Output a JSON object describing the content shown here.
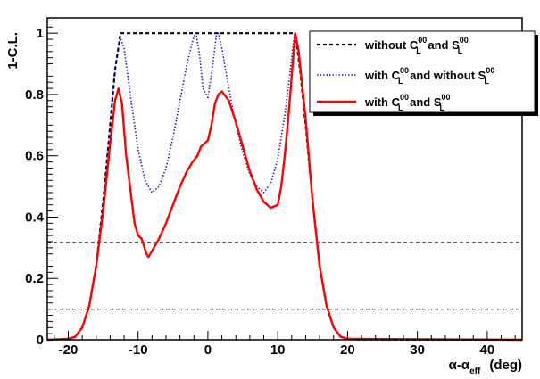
{
  "chart_data": {
    "type": "line",
    "title": "",
    "xlabel": {
      "base": "α-α",
      "sub": "eff",
      "unit": "(deg)"
    },
    "ylabel": "1-C.L.",
    "xlim": [
      -23,
      45
    ],
    "ylim": [
      0,
      1.05
    ],
    "x_ticks": [
      -20,
      -10,
      0,
      10,
      20,
      30,
      40
    ],
    "y_ticks": [
      0,
      0.2,
      0.4,
      0.6,
      0.8,
      1
    ],
    "x_tick_labels": [
      "-20",
      "-10",
      "0",
      "10",
      "20",
      "30",
      "40"
    ],
    "y_tick_labels": [
      "0",
      "0.2",
      "0.4",
      "0.6",
      "0.8",
      "1"
    ],
    "grid": false,
    "legend_position": "top-right",
    "reference_lines": [
      0.317,
      0.1
    ],
    "series": [
      {
        "legend": {
          "pre": "without C",
          "sup1": "00",
          "sub1": "L",
          "mid": " and S",
          "sup2": "00",
          "sub2": "L",
          "post": ""
        },
        "color": "#000000",
        "style": "dashed",
        "points": [
          [
            -23,
            0
          ],
          [
            -20,
            0.003
          ],
          [
            -19,
            0.01
          ],
          [
            -18,
            0.04
          ],
          [
            -17,
            0.11
          ],
          [
            -16,
            0.24
          ],
          [
            -15,
            0.45
          ],
          [
            -14,
            0.7
          ],
          [
            -13.3,
            0.88
          ],
          [
            -12.5,
            1
          ],
          [
            12.5,
            1
          ],
          [
            13.2,
            0.88
          ],
          [
            14,
            0.7
          ],
          [
            15,
            0.45
          ],
          [
            16,
            0.24
          ],
          [
            17,
            0.11
          ],
          [
            18,
            0.04
          ],
          [
            19,
            0.01
          ],
          [
            20,
            0.003
          ],
          [
            21,
            0.001
          ],
          [
            45,
            0
          ]
        ]
      },
      {
        "legend": {
          "pre": "with C",
          "sup1": "00",
          "sub1": "L",
          "mid": " and without S",
          "sup2": "00",
          "sub2": "L",
          "post": ""
        },
        "color": "#1c1cbe",
        "style": "dotted",
        "points": [
          [
            -23,
            0
          ],
          [
            -20,
            0.003
          ],
          [
            -19,
            0.01
          ],
          [
            -18,
            0.04
          ],
          [
            -17,
            0.11
          ],
          [
            -16,
            0.24
          ],
          [
            -15,
            0.45
          ],
          [
            -14,
            0.7
          ],
          [
            -13.3,
            0.88
          ],
          [
            -12.6,
            0.99
          ],
          [
            -12,
            0.95
          ],
          [
            -11,
            0.78
          ],
          [
            -10,
            0.62
          ],
          [
            -9,
            0.52
          ],
          [
            -8,
            0.48
          ],
          [
            -7,
            0.5
          ],
          [
            -6,
            0.56
          ],
          [
            -5,
            0.66
          ],
          [
            -4,
            0.78
          ],
          [
            -3,
            0.9
          ],
          [
            -2,
            0.99
          ],
          [
            -1.7,
            1
          ],
          [
            -1.2,
            0.93
          ],
          [
            -0.7,
            0.82
          ],
          [
            0,
            0.79
          ],
          [
            0.6,
            0.88
          ],
          [
            1.2,
            0.99
          ],
          [
            1.5,
            1
          ],
          [
            2,
            0.95
          ],
          [
            3,
            0.82
          ],
          [
            4,
            0.7
          ],
          [
            5,
            0.61
          ],
          [
            6,
            0.54
          ],
          [
            7,
            0.5
          ],
          [
            8,
            0.48
          ],
          [
            9,
            0.51
          ],
          [
            10,
            0.59
          ],
          [
            11,
            0.73
          ],
          [
            11.8,
            0.88
          ],
          [
            12.4,
            1
          ],
          [
            13,
            0.95
          ],
          [
            14,
            0.72
          ],
          [
            15,
            0.45
          ],
          [
            16,
            0.24
          ],
          [
            17,
            0.11
          ],
          [
            18,
            0.04
          ],
          [
            19,
            0.01
          ],
          [
            20,
            0.003
          ],
          [
            45,
            0
          ]
        ]
      },
      {
        "legend": {
          "pre": "with C",
          "sup1": "00",
          "sub1": "L",
          "mid": " and S",
          "sup2": "00",
          "sub2": "L",
          "post": ""
        },
        "color": "#ff0000",
        "style": "solid",
        "points": [
          [
            -23,
            0
          ],
          [
            -20,
            0.003
          ],
          [
            -19,
            0.01
          ],
          [
            -18,
            0.04
          ],
          [
            -17,
            0.11
          ],
          [
            -16,
            0.24
          ],
          [
            -15,
            0.42
          ],
          [
            -14,
            0.64
          ],
          [
            -13.3,
            0.78
          ],
          [
            -12.8,
            0.82
          ],
          [
            -12.3,
            0.77
          ],
          [
            -11.7,
            0.6
          ],
          [
            -11,
            0.47
          ],
          [
            -10.5,
            0.38
          ],
          [
            -10,
            0.34
          ],
          [
            -9.5,
            0.33
          ],
          [
            -8.8,
            0.28
          ],
          [
            -8.5,
            0.27
          ],
          [
            -8,
            0.29
          ],
          [
            -7,
            0.33
          ],
          [
            -6,
            0.38
          ],
          [
            -5,
            0.44
          ],
          [
            -4,
            0.5
          ],
          [
            -3,
            0.55
          ],
          [
            -2.2,
            0.58
          ],
          [
            -1.5,
            0.6
          ],
          [
            -1,
            0.63
          ],
          [
            0,
            0.65
          ],
          [
            0.5,
            0.7
          ],
          [
            1,
            0.77
          ],
          [
            1.5,
            0.8
          ],
          [
            2,
            0.81
          ],
          [
            3,
            0.78
          ],
          [
            4,
            0.71
          ],
          [
            5,
            0.63
          ],
          [
            6,
            0.55
          ],
          [
            7,
            0.49
          ],
          [
            8,
            0.45
          ],
          [
            9,
            0.43
          ],
          [
            10,
            0.44
          ],
          [
            10.5,
            0.5
          ],
          [
            11,
            0.6
          ],
          [
            11.5,
            0.72
          ],
          [
            12,
            0.86
          ],
          [
            12.5,
            1
          ],
          [
            13,
            0.94
          ],
          [
            14,
            0.72
          ],
          [
            15,
            0.45
          ],
          [
            16,
            0.24
          ],
          [
            17,
            0.11
          ],
          [
            18,
            0.04
          ],
          [
            19,
            0.01
          ],
          [
            20,
            0.003
          ],
          [
            45,
            0
          ]
        ]
      }
    ]
  }
}
